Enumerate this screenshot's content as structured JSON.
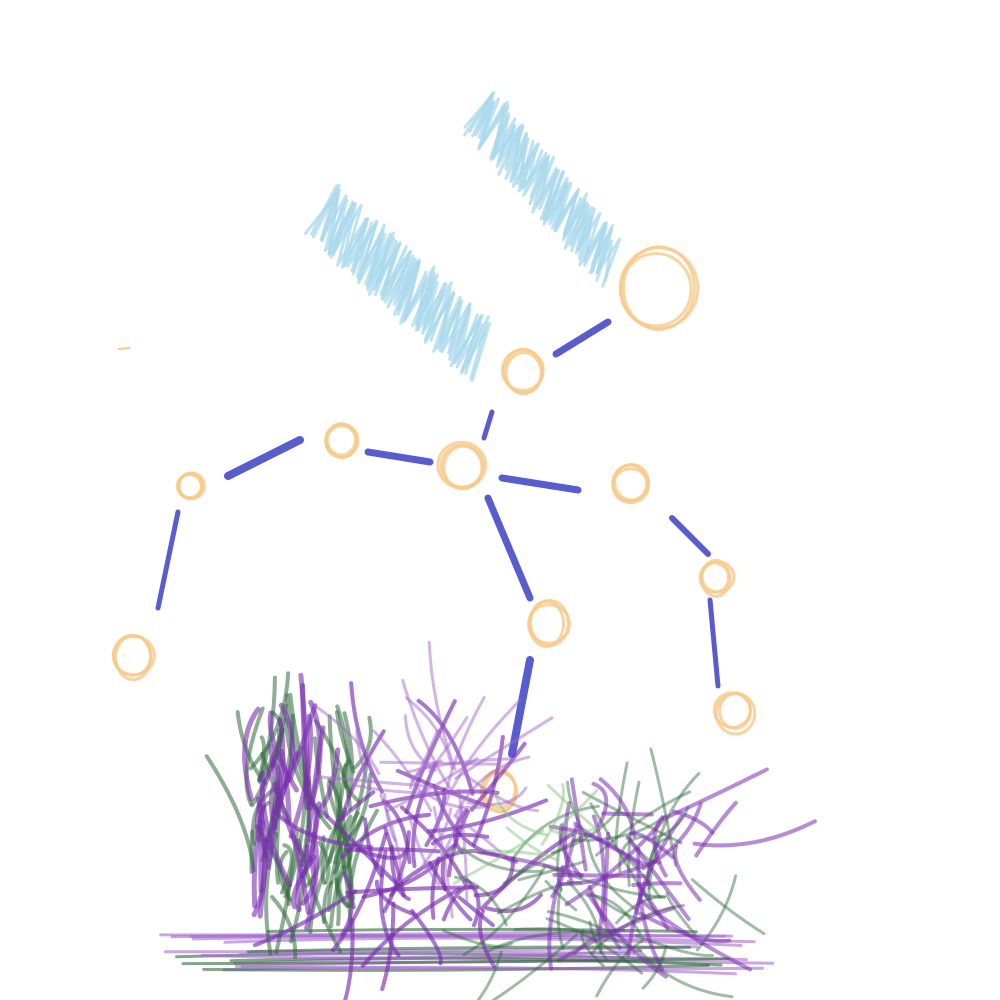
{
  "canvas": {
    "background": "#ffffff"
  },
  "palette": {
    "joint": "#f7c98a",
    "bone": "#3b3fc4",
    "wing": "#a9d8ec",
    "grass_dark": "#2f6b3a",
    "grass_light": "#7fc07a",
    "flower_purple": "#7a2fb0",
    "flower_lilac": "#a66ad0"
  },
  "figure": {
    "label": "stick-figure-dancer",
    "description_elements": [
      "head-joint",
      "neck-joint",
      "pelvis-joint",
      "arm-left",
      "arm-right",
      "leg-left",
      "leg-right"
    ]
  }
}
